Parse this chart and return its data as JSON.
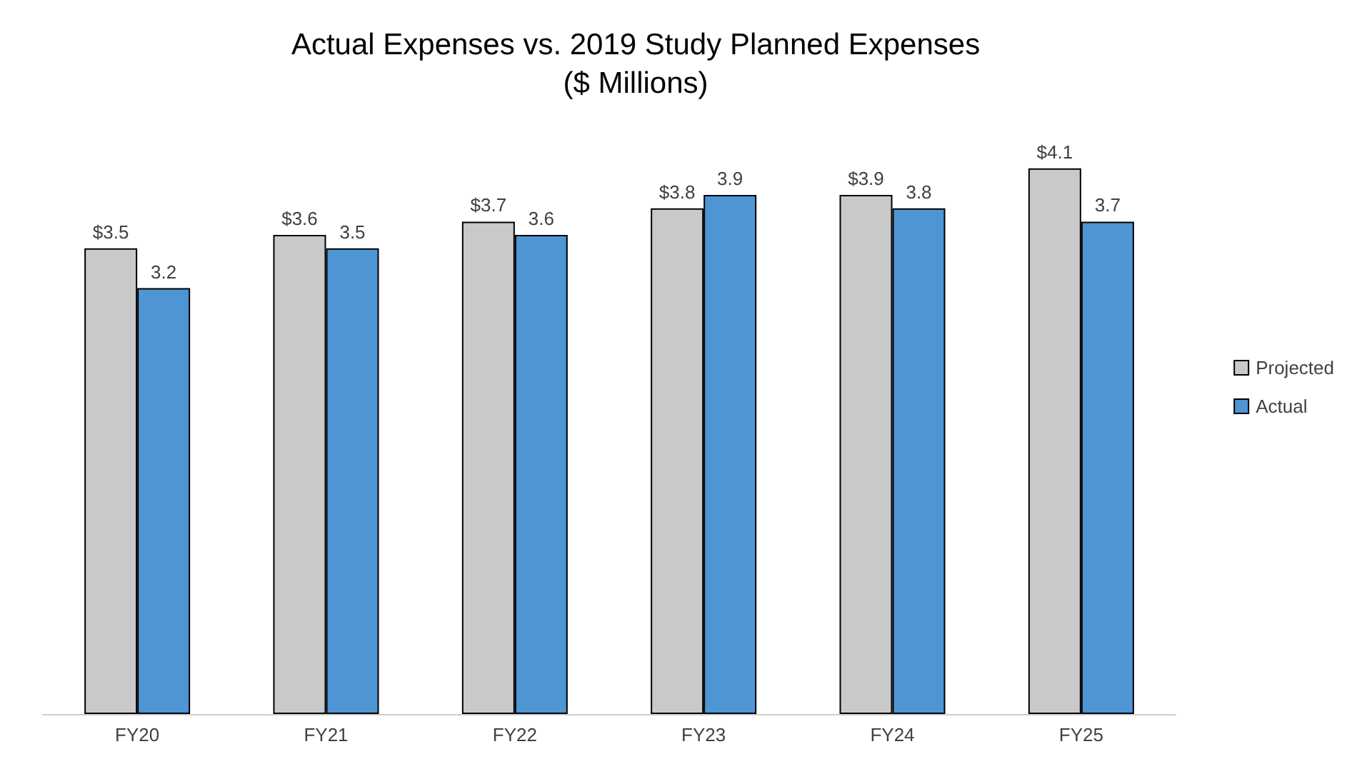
{
  "chart_data": {
    "type": "bar",
    "title": "Actual Expenses vs. 2019 Study Planned Expenses",
    "subtitle": "($ Millions)",
    "categories": [
      "FY20",
      "FY21",
      "FY22",
      "FY23",
      "FY24",
      "FY25"
    ],
    "series": [
      {
        "name": "Projected",
        "color": "#c9c9c9",
        "values": [
          3.5,
          3.6,
          3.7,
          3.8,
          3.9,
          4.1
        ],
        "value_labels": [
          "$3.5",
          "$3.6",
          "$3.7",
          "$3.8",
          "$3.9",
          "$4.1"
        ]
      },
      {
        "name": "Actual",
        "color": "#4e95d3",
        "values": [
          3.2,
          3.5,
          3.6,
          3.9,
          3.8,
          3.7
        ],
        "value_labels": [
          "3.2",
          "3.5",
          "3.6",
          "3.9",
          "3.8",
          "3.7"
        ]
      }
    ],
    "legend": "right"
  }
}
